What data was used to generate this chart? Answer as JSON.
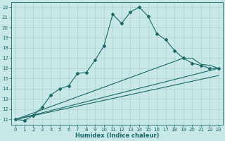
{
  "title": "",
  "xlabel": "Humidex (Indice chaleur)",
  "bg_color": "#c8e8e8",
  "grid_color": "#b0d0d0",
  "line_color": "#1a6868",
  "xlim": [
    -0.5,
    23.5
  ],
  "ylim": [
    10.5,
    22.5
  ],
  "xticks": [
    0,
    1,
    2,
    3,
    4,
    5,
    6,
    7,
    8,
    9,
    10,
    11,
    12,
    13,
    14,
    15,
    16,
    17,
    18,
    19,
    20,
    21,
    22,
    23
  ],
  "yticks": [
    11,
    12,
    13,
    14,
    15,
    16,
    17,
    18,
    19,
    20,
    21,
    22
  ],
  "line1_x": [
    0,
    1,
    2,
    3,
    4,
    5,
    6,
    7,
    8,
    9,
    10,
    11,
    12,
    13,
    14,
    15,
    16,
    17,
    18,
    19,
    20,
    21,
    22,
    23
  ],
  "line1_y": [
    11.0,
    10.9,
    11.4,
    12.2,
    13.4,
    14.0,
    14.3,
    15.5,
    15.6,
    16.8,
    18.2,
    21.3,
    20.4,
    21.5,
    22.0,
    21.1,
    19.4,
    18.8,
    17.75,
    17.0,
    16.5,
    16.3,
    16.0,
    16.0
  ],
  "line2_x": [
    0,
    19,
    20,
    21,
    22,
    23
  ],
  "line2_y": [
    11.0,
    17.0,
    17.0,
    16.4,
    16.3,
    16.0
  ],
  "line3_x": [
    0,
    23
  ],
  "line3_y": [
    11.0,
    16.0
  ],
  "line4_x": [
    0,
    23
  ],
  "line4_y": [
    11.0,
    15.3
  ]
}
